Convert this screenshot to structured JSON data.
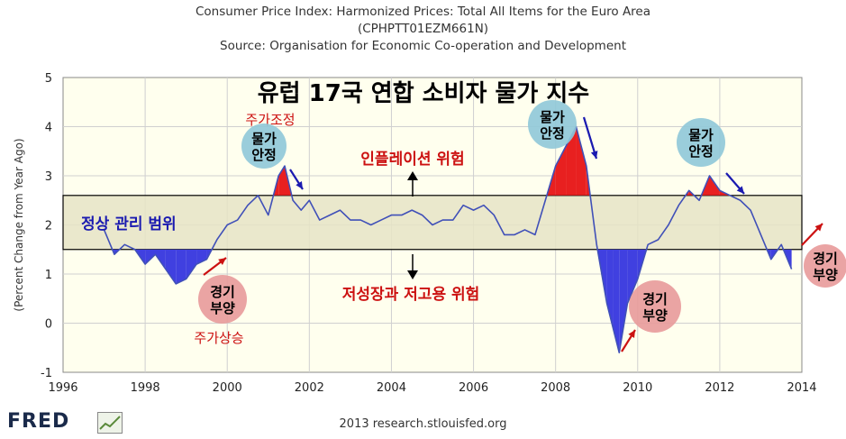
{
  "header": {
    "title": "Consumer Price Index: Harmonized Prices: Total All Items for the Euro Area",
    "series_id": "(CPHPTT01EZM661N)",
    "source": "Source: Organisation for Economic Co-operation and Development"
  },
  "footer": {
    "brand": "FRED",
    "credit": "2013 research.stlouisfed.org"
  },
  "colors": {
    "plot_bg": "#ffffee",
    "band": "#e6e4c6",
    "line": "#4050b8",
    "above_fill": "#e82020",
    "below_fill": "#4040e0",
    "bubble_blue": "#8fc8d8",
    "bubble_red": "#e89a9a",
    "annotation_red": "#cc1111",
    "annotation_blue": "#1a1ab0"
  },
  "annotations": {
    "main_title": "유럽 17국 연합 소비자 물가 지수",
    "band_label": "정상 관리 범위",
    "inflation_risk": "인플레이션 위험",
    "deflation_risk": "저성장과 저고용 위험",
    "stock_adjust": "주가조정",
    "stock_rise": "주가상승",
    "price_stable_1": [
      "물가",
      "안정"
    ],
    "price_stable_2": [
      "물가",
      "안정"
    ],
    "price_stable_3": [
      "물가",
      "안정"
    ],
    "boom_1": [
      "경기",
      "부양"
    ],
    "boom_2": [
      "경기",
      "부양"
    ],
    "boom_3": [
      "경기",
      "부양"
    ]
  },
  "chart_data": {
    "type": "line",
    "ylabel": "(Percent Change from Year Ago)",
    "xlim": [
      1996,
      2014
    ],
    "ylim": [
      -1,
      5
    ],
    "x_ticks": [
      "1996",
      "1998",
      "2000",
      "2002",
      "2004",
      "2006",
      "2008",
      "2010",
      "2012",
      "2014"
    ],
    "y_ticks": [
      "-1",
      "0",
      "1",
      "2",
      "3",
      "4",
      "5"
    ],
    "band": [
      1.5,
      2.6
    ],
    "series": [
      {
        "x": [
          1997.0,
          1997.25,
          1997.5,
          1997.75,
          1998.0,
          1998.25,
          1998.5,
          1998.75,
          1999.0,
          1999.25,
          1999.5,
          1999.75,
          2000.0,
          2000.25,
          2000.5,
          2000.75,
          2001.0,
          2001.25,
          2001.4,
          2001.6,
          2001.8,
          2002.0,
          2002.25,
          2002.5,
          2002.75,
          2003.0,
          2003.25,
          2003.5,
          2003.75,
          2004.0,
          2004.25,
          2004.5,
          2004.75,
          2005.0,
          2005.25,
          2005.5,
          2005.75,
          2006.0,
          2006.25,
          2006.5,
          2006.75,
          2007.0,
          2007.25,
          2007.5,
          2007.75,
          2008.0,
          2008.25,
          2008.5,
          2008.75,
          2009.0,
          2009.25,
          2009.4,
          2009.55,
          2009.75,
          2010.0,
          2010.25,
          2010.5,
          2010.75,
          2011.0,
          2011.25,
          2011.5,
          2011.75,
          2012.0,
          2012.25,
          2012.5,
          2012.75,
          2013.0,
          2013.25,
          2013.5,
          2013.75
        ],
        "y": [
          1.9,
          1.4,
          1.6,
          1.5,
          1.2,
          1.4,
          1.1,
          0.8,
          0.9,
          1.2,
          1.3,
          1.7,
          2.0,
          2.1,
          2.4,
          2.6,
          2.2,
          3.0,
          3.2,
          2.5,
          2.3,
          2.5,
          2.1,
          2.2,
          2.3,
          2.1,
          2.1,
          2.0,
          2.1,
          2.2,
          2.2,
          2.3,
          2.2,
          2.0,
          2.1,
          2.1,
          2.4,
          2.3,
          2.4,
          2.2,
          1.8,
          1.8,
          1.9,
          1.8,
          2.5,
          3.2,
          3.6,
          4.0,
          3.2,
          1.6,
          0.4,
          -0.1,
          -0.6,
          0.4,
          0.9,
          1.6,
          1.7,
          2.0,
          2.4,
          2.7,
          2.5,
          3.0,
          2.7,
          2.6,
          2.5,
          2.3,
          1.8,
          1.3,
          1.6,
          1.1
        ]
      }
    ]
  }
}
